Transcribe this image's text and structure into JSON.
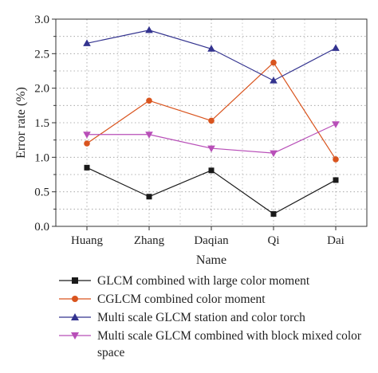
{
  "chart_data": {
    "type": "line",
    "categories": [
      "Huang",
      "Zhang",
      "Daqian",
      "Qi",
      "Dai"
    ],
    "xlabel": "Name",
    "ylabel": "Error rate (%)",
    "ylim": [
      0,
      3.0
    ],
    "yticks": [
      "0.0",
      "0.5",
      "1.0",
      "1.5",
      "2.0",
      "2.5",
      "3.0"
    ],
    "grid": "dotted",
    "legend_position": "bottom",
    "series": [
      {
        "name": "GLCM combined with large color moment",
        "values": [
          0.85,
          0.43,
          0.81,
          0.18,
          0.67
        ],
        "color": "#1a1a1a",
        "marker": "square"
      },
      {
        "name": "CGLCM combined color moment",
        "values": [
          1.2,
          1.82,
          1.53,
          2.37,
          0.97
        ],
        "color": "#d9541e",
        "marker": "circle"
      },
      {
        "name": "Multi scale GLCM station and color torch",
        "values": [
          2.65,
          2.84,
          2.57,
          2.11,
          2.58
        ],
        "color": "#33338f",
        "marker": "triangle-up"
      },
      {
        "name": "Multi scale GLCM combined with block mixed color space",
        "values": [
          1.33,
          1.33,
          1.13,
          1.06,
          1.48
        ],
        "color": "#b84fb8",
        "marker": "triangle-down"
      }
    ]
  }
}
